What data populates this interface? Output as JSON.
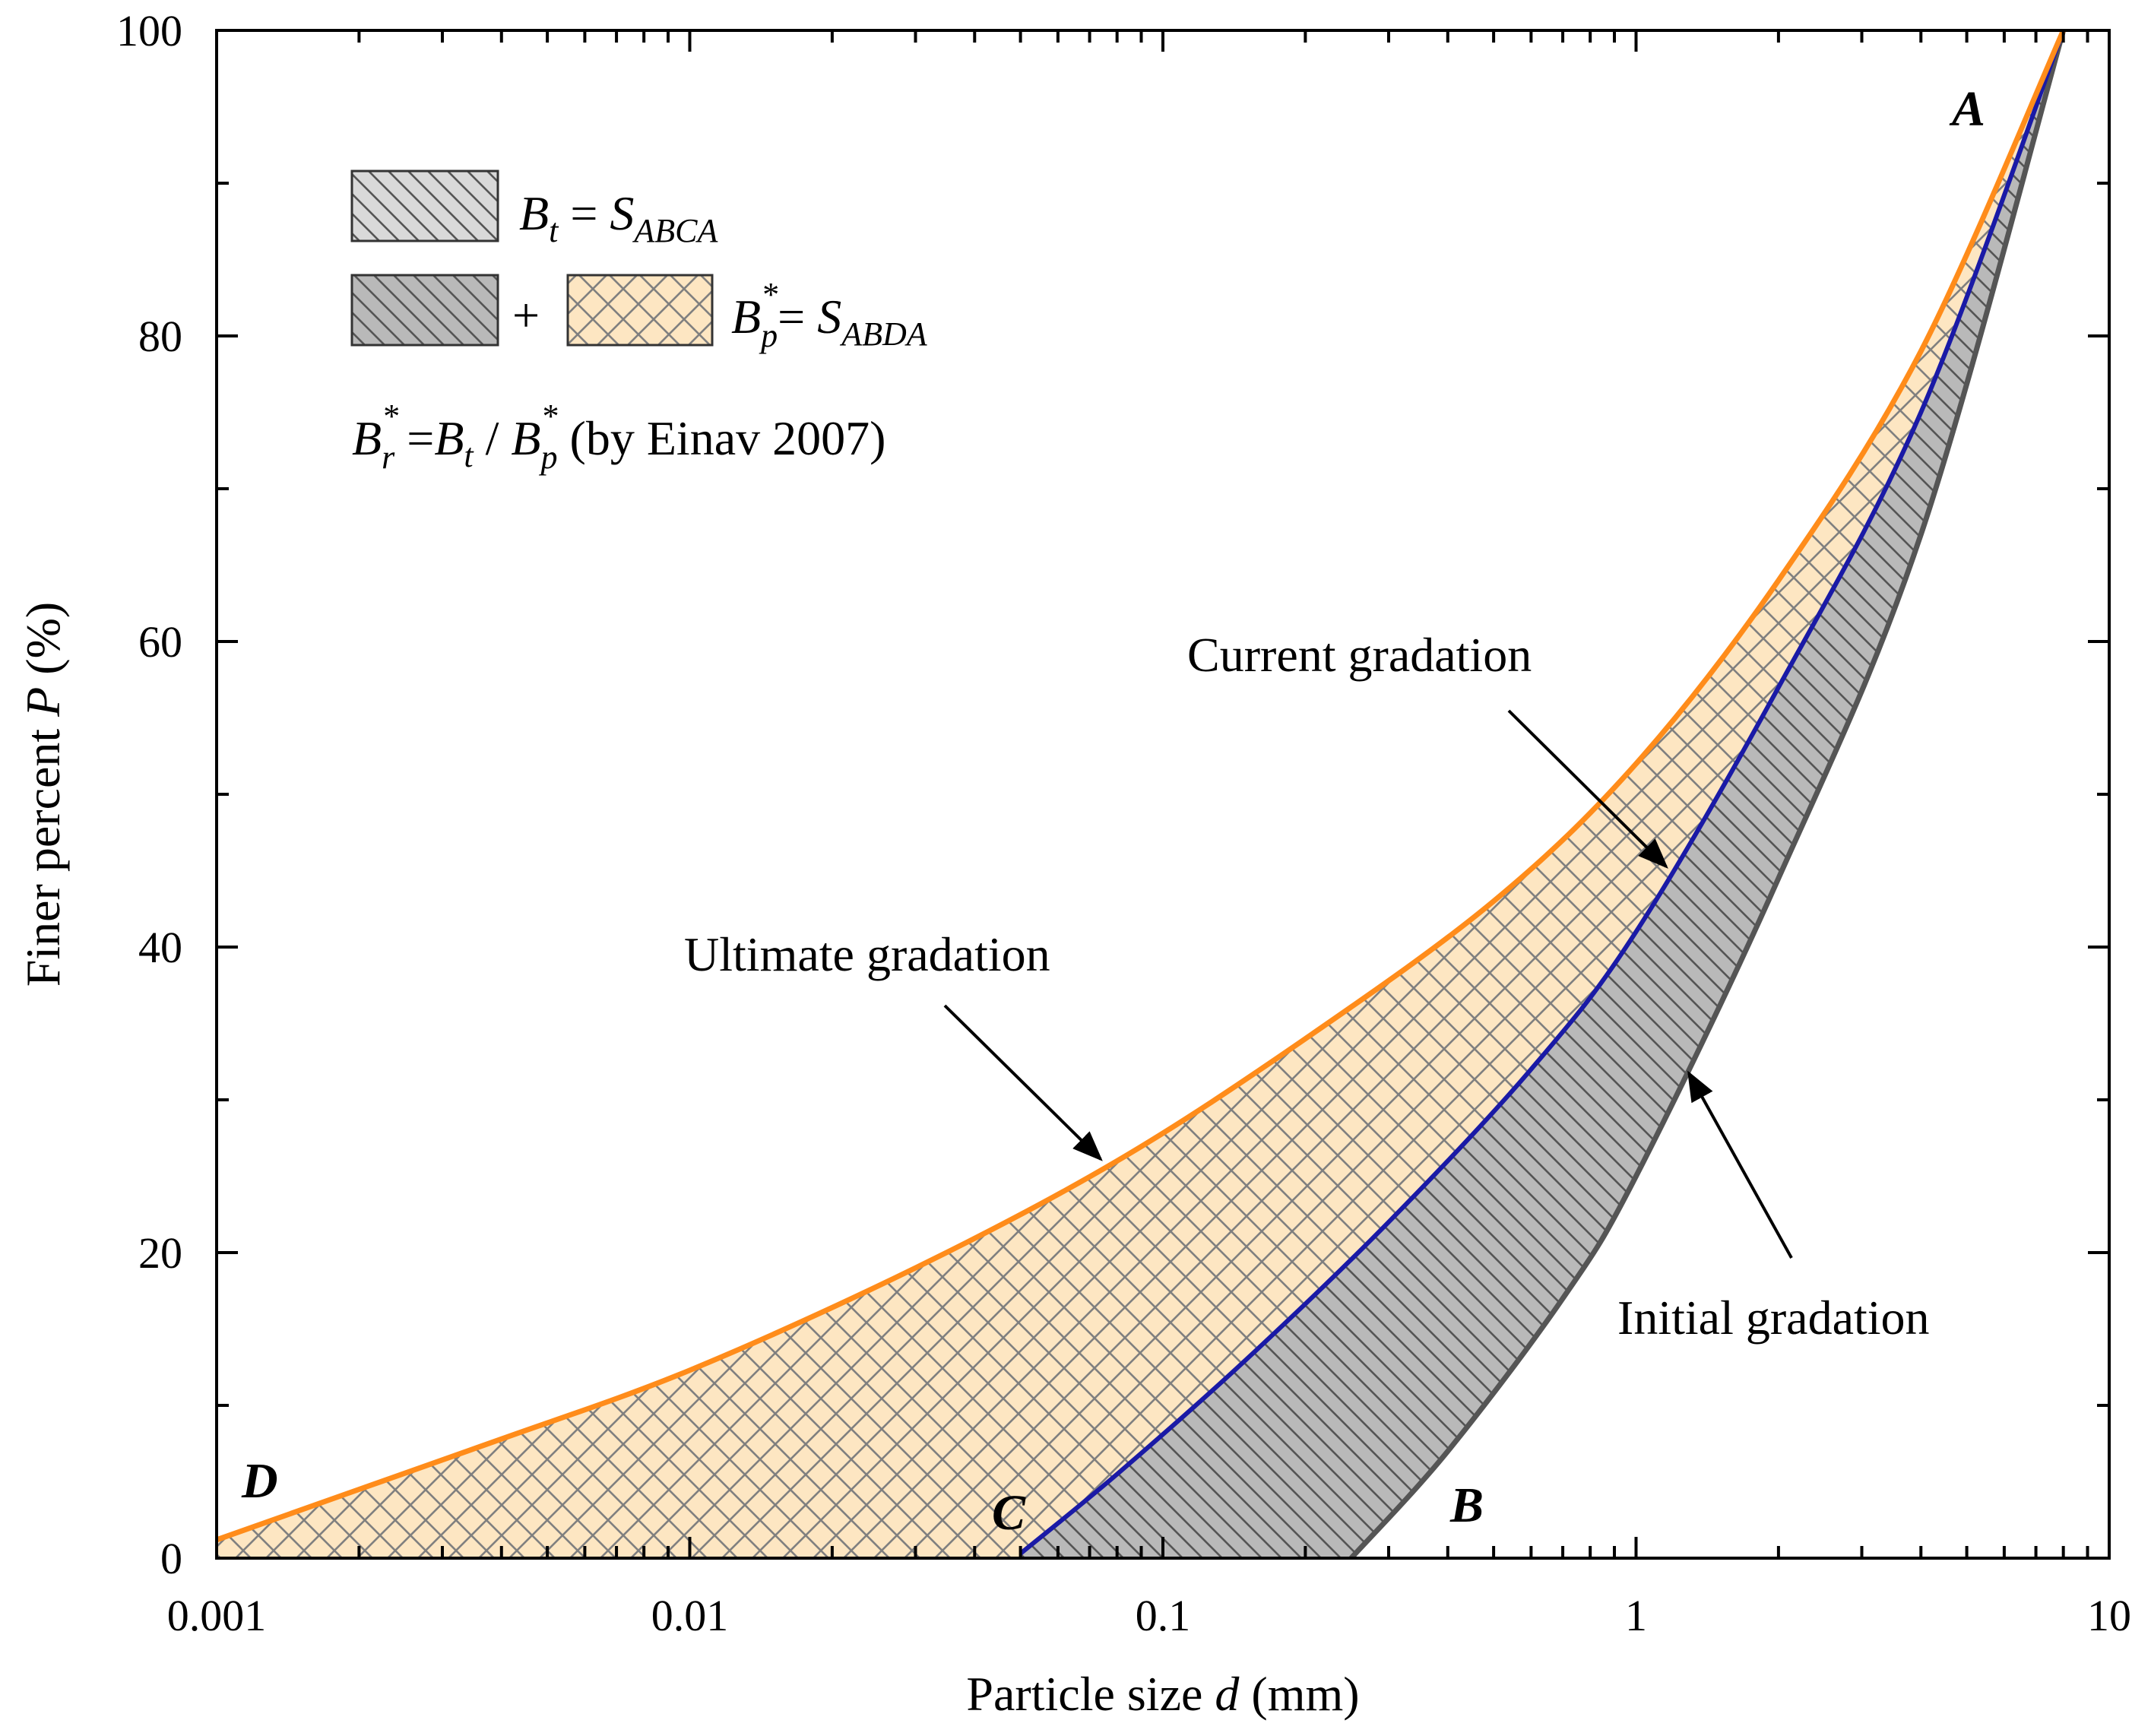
{
  "colors": {
    "ultimate": "#FF8C1A",
    "current": "#1A1AA6",
    "initial": "#555555",
    "tan_fill": "#FDE6C2",
    "grey_fill": "#B9B9B9",
    "hatch": "#707070"
  },
  "chart_data": {
    "type": "line",
    "title": "",
    "xlabel_prefix": "Particle size ",
    "xlabel_var": "d",
    "xlabel_suffix": " (mm)",
    "ylabel_prefix": "Finer percent ",
    "ylabel_var": "P",
    "ylabel_suffix": " (%)",
    "xscale": "log",
    "xlim": [
      0.001,
      10
    ],
    "ylim": [
      0,
      100
    ],
    "xticks": [
      0.001,
      0.01,
      0.1,
      1,
      10
    ],
    "xtick_labels": [
      "0.001",
      "0.01",
      "0.1",
      "1",
      "10"
    ],
    "yticks": [
      0,
      20,
      40,
      60,
      80,
      100
    ],
    "ytick_labels": [
      "0",
      "20",
      "40",
      "60",
      "80",
      "100"
    ],
    "series": [
      {
        "name": "Ultimate gradation",
        "x": [
          0.001,
          0.002,
          0.004,
          0.01,
          0.03,
          0.08,
          0.2,
          0.5,
          1,
          2,
          4,
          8
        ],
        "y": [
          1.2,
          4.5,
          7.8,
          12.3,
          19.0,
          26.0,
          34.0,
          43.0,
          52.0,
          64.0,
          79.0,
          100
        ]
      },
      {
        "name": "Current gradation",
        "x": [
          0.05,
          0.08,
          0.15,
          0.3,
          0.6,
          1.0,
          2.0,
          4.0,
          8.0
        ],
        "y": [
          0.3,
          5.5,
          13.0,
          22.0,
          32.0,
          41.0,
          57.0,
          75.0,
          100
        ]
      },
      {
        "name": "Initial gradation",
        "x": [
          0.25,
          0.4,
          0.7,
          1.0,
          2.0,
          4.0,
          8.0
        ],
        "y": [
          0,
          7.0,
          17.0,
          25.0,
          44.5,
          67.0,
          100
        ]
      }
    ],
    "point_labels": [
      "A",
      "B",
      "C",
      "D"
    ],
    "annotations": [
      "Ultimate gradation",
      "Current gradation",
      "Initial gradation"
    ],
    "legend": {
      "row1": {
        "base": "B",
        "sub": "t",
        "eq": " = ",
        "rhs_base": "S",
        "rhs_sub": "ABCA"
      },
      "row2": {
        "plus": "+",
        "base": "B",
        "sup": "*",
        "sub": "p",
        "eq": "= ",
        "rhs_base": "S",
        "rhs_sub": "ABDA"
      },
      "row3": {
        "lhs_base": "B",
        "lhs_sup": "*",
        "lhs_sub": "r",
        "eq": " =",
        "mid_base": "B",
        "mid_sub": "t",
        "slash": " / ",
        "rhs_base": "B",
        "rhs_sup": "*",
        "rhs_sub": "p",
        "tail": "  (by Einav 2007)"
      }
    }
  }
}
